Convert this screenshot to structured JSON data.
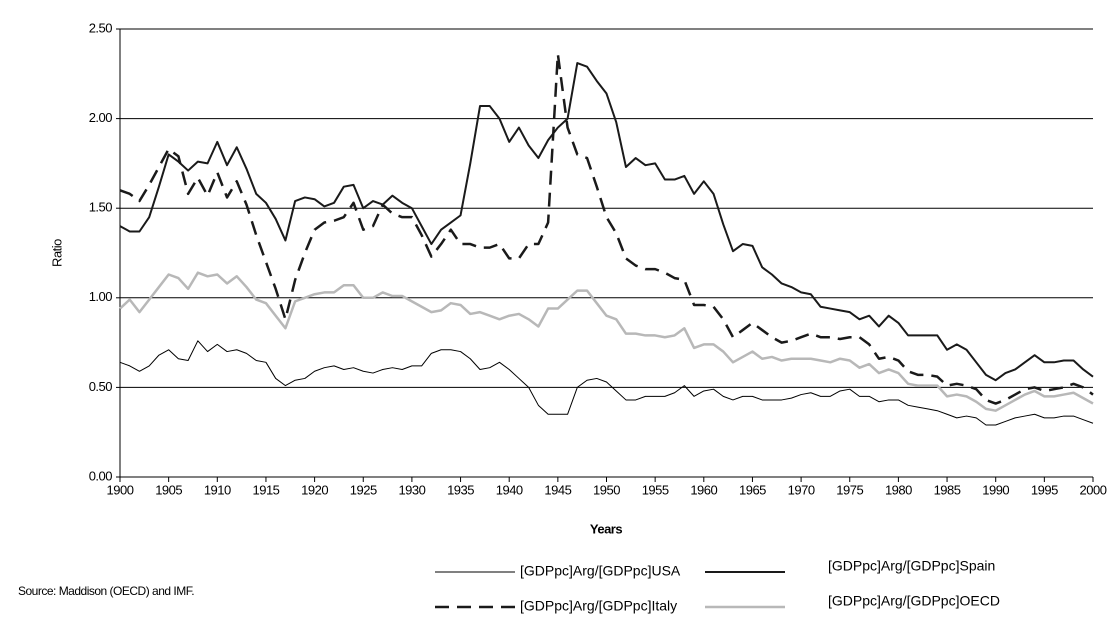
{
  "chart_data": {
    "type": "line",
    "xlabel": "Years",
    "ylabel": "Ratio",
    "annotation": "Source: Maddison (OECD) and IMF.",
    "x": [
      1900,
      1901,
      1902,
      1903,
      1904,
      1905,
      1906,
      1907,
      1908,
      1909,
      1910,
      1911,
      1912,
      1913,
      1914,
      1915,
      1916,
      1917,
      1918,
      1919,
      1920,
      1921,
      1922,
      1923,
      1924,
      1925,
      1926,
      1927,
      1928,
      1929,
      1930,
      1931,
      1932,
      1933,
      1934,
      1935,
      1936,
      1937,
      1938,
      1939,
      1940,
      1941,
      1942,
      1943,
      1944,
      1945,
      1946,
      1947,
      1948,
      1949,
      1950,
      1951,
      1952,
      1953,
      1954,
      1955,
      1956,
      1957,
      1958,
      1959,
      1960,
      1961,
      1962,
      1963,
      1964,
      1965,
      1966,
      1967,
      1968,
      1969,
      1970,
      1971,
      1972,
      1973,
      1974,
      1975,
      1976,
      1977,
      1978,
      1979,
      1980,
      1981,
      1982,
      1983,
      1984,
      1985,
      1986,
      1987,
      1988,
      1989,
      1990,
      1991,
      1992,
      1993,
      1994,
      1995,
      1996,
      1997,
      1998,
      1999,
      2000
    ],
    "xlim": [
      1900,
      2000
    ],
    "xticks": [
      1900,
      1905,
      1910,
      1915,
      1920,
      1925,
      1930,
      1935,
      1940,
      1945,
      1950,
      1955,
      1960,
      1965,
      1970,
      1975,
      1980,
      1985,
      1990,
      1995,
      2000
    ],
    "ylim": [
      0,
      2.5
    ],
    "yticks": [
      {
        "value": 0,
        "label": "0.00"
      },
      {
        "value": 0.5,
        "label": "0.50"
      },
      {
        "value": 1,
        "label": "1.00"
      },
      {
        "value": 1.5,
        "label": "1.50"
      },
      {
        "value": 2,
        "label": "2.00"
      },
      {
        "value": 2.5,
        "label": "2.50"
      }
    ],
    "grid": true,
    "series": [
      {
        "name": "[GDPpc]Arg/[GDPpc]USA",
        "color": "#000000",
        "width": 1,
        "dash": false,
        "values": [
          0.64,
          0.62,
          0.59,
          0.62,
          0.68,
          0.71,
          0.66,
          0.65,
          0.76,
          0.7,
          0.74,
          0.7,
          0.71,
          0.69,
          0.65,
          0.64,
          0.55,
          0.51,
          0.54,
          0.55,
          0.59,
          0.61,
          0.62,
          0.6,
          0.61,
          0.59,
          0.58,
          0.6,
          0.61,
          0.6,
          0.62,
          0.62,
          0.69,
          0.71,
          0.71,
          0.7,
          0.66,
          0.6,
          0.61,
          0.64,
          0.6,
          0.55,
          0.5,
          0.4,
          0.35,
          0.35,
          0.35,
          0.5,
          0.54,
          0.55,
          0.53,
          0.48,
          0.43,
          0.43,
          0.45,
          0.45,
          0.45,
          0.47,
          0.51,
          0.45,
          0.48,
          0.49,
          0.45,
          0.43,
          0.45,
          0.45,
          0.43,
          0.43,
          0.43,
          0.44,
          0.46,
          0.47,
          0.45,
          0.45,
          0.48,
          0.49,
          0.45,
          0.45,
          0.42,
          0.43,
          0.43,
          0.4,
          0.39,
          0.38,
          0.37,
          0.35,
          0.33,
          0.34,
          0.33,
          0.29,
          0.29,
          0.31,
          0.33,
          0.34,
          0.35,
          0.33,
          0.33,
          0.34,
          0.34,
          0.32,
          0.3
        ]
      },
      {
        "name": "[GDPpc]Arg/[GDPpc]Spain",
        "color": "#1a1a1a",
        "width": 2,
        "dash": false,
        "values": [
          1.4,
          1.37,
          1.37,
          1.45,
          1.62,
          1.8,
          1.76,
          1.71,
          1.76,
          1.75,
          1.87,
          1.74,
          1.84,
          1.72,
          1.58,
          1.53,
          1.44,
          1.32,
          1.54,
          1.56,
          1.55,
          1.51,
          1.53,
          1.62,
          1.63,
          1.5,
          1.54,
          1.52,
          1.57,
          1.53,
          1.5,
          1.4,
          1.3,
          1.38,
          1.42,
          1.46,
          1.75,
          2.07,
          2.07,
          2.0,
          1.87,
          1.95,
          1.85,
          1.78,
          1.88,
          1.95,
          2.0,
          2.31,
          2.29,
          2.21,
          2.14,
          1.98,
          1.73,
          1.78,
          1.74,
          1.75,
          1.66,
          1.66,
          1.68,
          1.58,
          1.65,
          1.58,
          1.41,
          1.26,
          1.3,
          1.29,
          1.17,
          1.13,
          1.08,
          1.06,
          1.03,
          1.02,
          0.95,
          0.94,
          0.93,
          0.92,
          0.88,
          0.9,
          0.84,
          0.9,
          0.86,
          0.79,
          0.79,
          0.79,
          0.79,
          0.71,
          0.74,
          0.71,
          0.64,
          0.57,
          0.54,
          0.58,
          0.6,
          0.64,
          0.68,
          0.64,
          0.64,
          0.65,
          0.65,
          0.6,
          0.56
        ]
      },
      {
        "name": "[GDPpc]Arg/[GDPpc]Italy",
        "color": "#1a1a1a",
        "width": 2.5,
        "dash": true,
        "values": [
          1.6,
          1.58,
          1.54,
          1.63,
          1.73,
          1.83,
          1.79,
          1.58,
          1.67,
          1.57,
          1.7,
          1.56,
          1.65,
          1.52,
          1.35,
          1.2,
          1.05,
          0.88,
          1.1,
          1.25,
          1.38,
          1.42,
          1.43,
          1.45,
          1.53,
          1.38,
          1.4,
          1.52,
          1.47,
          1.45,
          1.45,
          1.35,
          1.23,
          1.3,
          1.38,
          1.3,
          1.3,
          1.28,
          1.28,
          1.3,
          1.22,
          1.22,
          1.3,
          1.3,
          1.42,
          2.36,
          1.95,
          1.8,
          1.78,
          1.62,
          1.45,
          1.36,
          1.22,
          1.18,
          1.16,
          1.16,
          1.14,
          1.11,
          1.1,
          0.96,
          0.96,
          0.95,
          0.88,
          0.78,
          0.82,
          0.86,
          0.82,
          0.78,
          0.75,
          0.76,
          0.78,
          0.8,
          0.78,
          0.78,
          0.77,
          0.78,
          0.78,
          0.74,
          0.66,
          0.67,
          0.65,
          0.59,
          0.57,
          0.57,
          0.56,
          0.51,
          0.52,
          0.51,
          0.49,
          0.43,
          0.41,
          0.43,
          0.46,
          0.49,
          0.5,
          0.48,
          0.49,
          0.5,
          0.52,
          0.5,
          0.46
        ]
      },
      {
        "name": "[GDPpc]Arg/[GDPpc]OECD",
        "color": "#b8b8b8",
        "width": 2.5,
        "dash": false,
        "values": [
          0.94,
          0.99,
          0.92,
          0.99,
          1.06,
          1.13,
          1.11,
          1.05,
          1.14,
          1.12,
          1.13,
          1.08,
          1.12,
          1.06,
          0.99,
          0.97,
          0.9,
          0.83,
          0.98,
          1.0,
          1.02,
          1.03,
          1.03,
          1.07,
          1.07,
          1.0,
          1.0,
          1.03,
          1.01,
          1.01,
          0.98,
          0.95,
          0.92,
          0.93,
          0.97,
          0.96,
          0.91,
          0.92,
          0.9,
          0.88,
          0.9,
          0.91,
          0.88,
          0.84,
          0.94,
          0.94,
          0.99,
          1.04,
          1.04,
          0.97,
          0.9,
          0.88,
          0.8,
          0.8,
          0.79,
          0.79,
          0.78,
          0.79,
          0.83,
          0.72,
          0.74,
          0.74,
          0.7,
          0.64,
          0.67,
          0.7,
          0.66,
          0.67,
          0.65,
          0.66,
          0.66,
          0.66,
          0.65,
          0.64,
          0.66,
          0.65,
          0.61,
          0.63,
          0.58,
          0.6,
          0.58,
          0.52,
          0.51,
          0.51,
          0.51,
          0.45,
          0.46,
          0.45,
          0.42,
          0.38,
          0.37,
          0.4,
          0.43,
          0.46,
          0.48,
          0.45,
          0.45,
          0.46,
          0.47,
          0.44,
          0.41
        ]
      }
    ]
  }
}
